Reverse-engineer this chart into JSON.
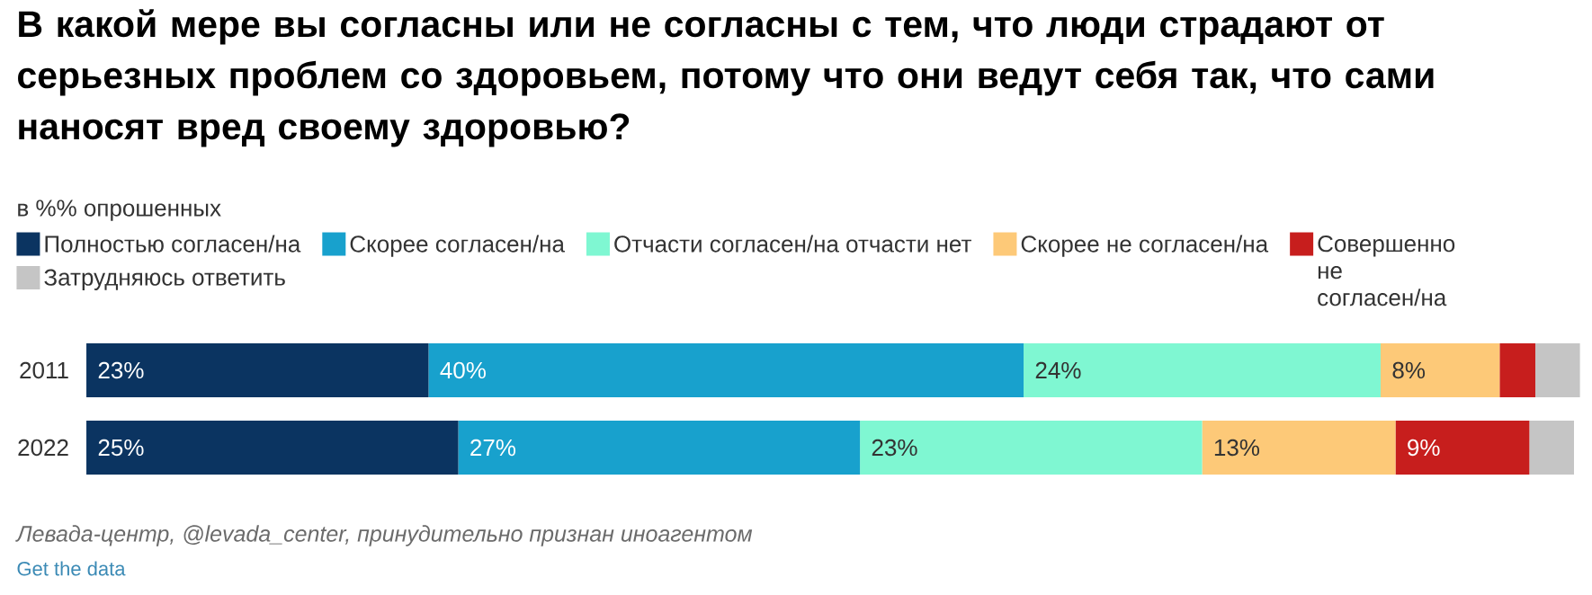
{
  "chart_data": {
    "type": "bar",
    "orientation": "horizontal",
    "stacked": true,
    "title": "В какой мере вы согласны или не согласны с тем, что люди страдают от серьезных проблем со здоровьем, потому что они ведут себя так, что сами наносят вред своему здоровью?",
    "subtitle": "в %% опрошенных",
    "categories": [
      "2011",
      "2022"
    ],
    "xlim": [
      0,
      100
    ],
    "tick_labels": "y",
    "legend": "top left",
    "series": [
      {
        "name": "Полностью согласен/на",
        "color": "#0b3461",
        "values": [
          23,
          25
        ],
        "value_labels": [
          "23%",
          "25%"
        ]
      },
      {
        "name": "Скорее согласен/на",
        "color": "#18a1cd",
        "values": [
          40,
          27
        ],
        "value_labels": [
          "40%",
          "27%"
        ]
      },
      {
        "name": "Отчасти согласен/на отчасти нет",
        "color": "#7ff7d2",
        "values": [
          24,
          23
        ],
        "value_labels": [
          "24%",
          "23%"
        ]
      },
      {
        "name": "Скорее не согласен/на",
        "color": "#fdc978",
        "values": [
          8,
          13
        ],
        "value_labels": [
          "8%",
          "13%"
        ]
      },
      {
        "name": "Совершенно не согласен/на",
        "color": "#c71e1d",
        "values": [
          2.4,
          9
        ],
        "value_labels": [
          null,
          "9%"
        ]
      },
      {
        "name": "Затрудняюсь ответить",
        "color": "#c5c5c5",
        "values": [
          3,
          3
        ],
        "value_labels": [
          null,
          null
        ]
      }
    ],
    "annotations": [
      "Левада-центр, @levada_center, принудительно признан иноагентом",
      "Get the data"
    ]
  }
}
